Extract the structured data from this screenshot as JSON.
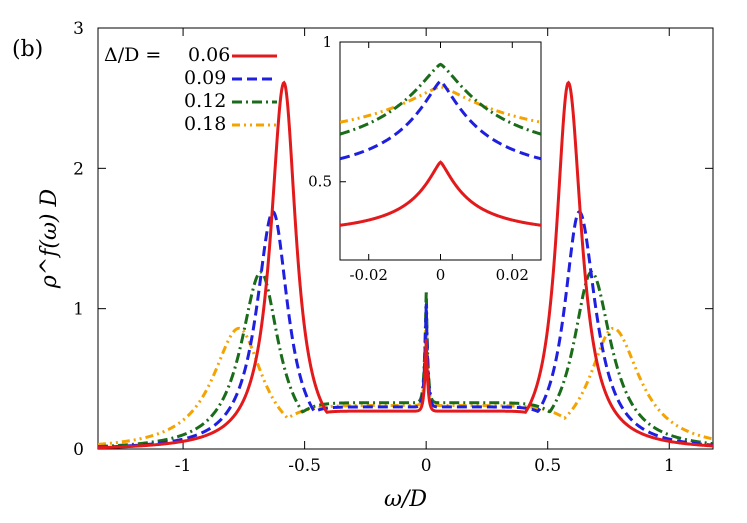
{
  "chart_data": {
    "type": "line",
    "panel_label": "(b)",
    "xlabel": "ω/D",
    "ylabel": "ρ^f(ω) D",
    "xlim": [
      -1.35,
      1.18
    ],
    "ylim": [
      0,
      3
    ],
    "xticks": [
      {
        "value": -1,
        "label": "-1"
      },
      {
        "value": -0.5,
        "label": "-0.5"
      },
      {
        "value": 0,
        "label": "0"
      },
      {
        "value": 0.5,
        "label": "0.5"
      },
      {
        "value": 1,
        "label": "1"
      }
    ],
    "yticks": [
      {
        "value": 0,
        "label": "0"
      },
      {
        "value": 1,
        "label": "1"
      },
      {
        "value": 2,
        "label": "2"
      },
      {
        "value": 3,
        "label": "3"
      }
    ],
    "legend_title": "Δ/D =",
    "series": [
      {
        "name": "0.06",
        "color": "#e31a1c",
        "dash": "",
        "peak_x": 0.585,
        "peak_y": 2.62,
        "width": 0.06,
        "mid": 0.28,
        "mid_w": 0.42,
        "center": 0.6
      },
      {
        "name": "0.09",
        "color": "#1f1fe0",
        "dash": "10,5",
        "peak_x": 0.63,
        "peak_y": 1.7,
        "width": 0.075,
        "mid": 0.31,
        "mid_w": 0.46,
        "center": 0.86
      },
      {
        "name": "0.12",
        "color": "#1a6b1a",
        "dash": "10,4,2,4",
        "peak_x": 0.68,
        "peak_y": 1.27,
        "width": 0.09,
        "mid": 0.34,
        "mid_w": 0.5,
        "center": 0.94
      },
      {
        "name": "0.18",
        "color": "#f5a300",
        "dash": "8,4,2,4,2,4",
        "peak_x": 0.77,
        "peak_y": 0.87,
        "width": 0.12,
        "mid": 0.32,
        "mid_w": 0.56,
        "center": 0.78
      }
    ],
    "inset": {
      "xlim": [
        -0.028,
        0.028
      ],
      "ylim": [
        0.22,
        1.0
      ],
      "xticks": [
        {
          "value": -0.02,
          "label": "-0.02"
        },
        {
          "value": 0,
          "label": "0"
        },
        {
          "value": 0.02,
          "label": "0.02"
        }
      ],
      "yticks": [
        {
          "value": 0.5,
          "label": "0.5"
        },
        {
          "value": 1,
          "label": "1"
        }
      ],
      "series": [
        {
          "name": "0.06",
          "center": 0.57,
          "edge": 0.3,
          "w": 0.008
        },
        {
          "name": "0.09",
          "center": 0.86,
          "edge": 0.49,
          "w": 0.012
        },
        {
          "name": "0.12",
          "center": 0.92,
          "edge": 0.55,
          "w": 0.016
        },
        {
          "name": "0.18",
          "center": 0.84,
          "edge": 0.62,
          "w": 0.022
        }
      ]
    }
  }
}
